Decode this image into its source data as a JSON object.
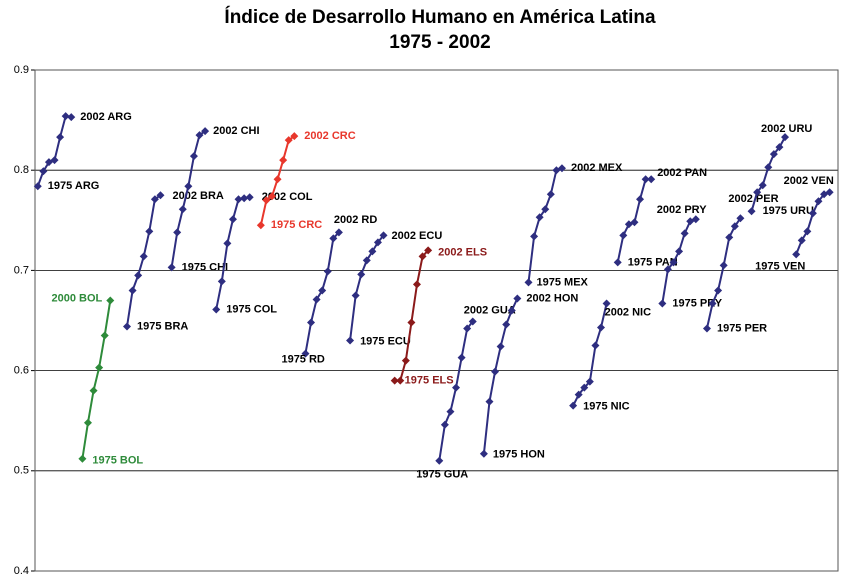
{
  "chart_data": {
    "type": "line",
    "title": "Índice de Desarrollo Humano en América Latina",
    "subtitle": "1975 - 2002",
    "xlim": [
      -0.5,
      143.5
    ],
    "ylim": [
      0.4,
      0.9
    ],
    "yticks": [
      0.4,
      0.5,
      0.6,
      0.7,
      0.8,
      0.9
    ],
    "grid": true,
    "series": [
      {
        "start_label": "1975 ARG",
        "end_label": "2002 ARG",
        "color": "#2e2e80",
        "x": [
          0,
          1,
          2,
          3,
          4,
          5,
          6
        ],
        "values": [
          0.784,
          0.799,
          0.808,
          0.81,
          0.833,
          0.854,
          0.853
        ]
      },
      {
        "start_label": "1975 BOL",
        "end_label": "2000 BOL",
        "color": "#2e8b3a",
        "x": [
          8,
          9,
          10,
          11,
          12,
          13
        ],
        "values": [
          0.512,
          0.548,
          0.58,
          0.603,
          0.635,
          0.67
        ]
      },
      {
        "start_label": "1975 BRA",
        "end_label": "2002 BRA",
        "color": "#2e2e80",
        "x": [
          16,
          17,
          18,
          19,
          20,
          21,
          22
        ],
        "values": [
          0.644,
          0.68,
          0.695,
          0.714,
          0.739,
          0.771,
          0.775
        ]
      },
      {
        "start_label": "1975 CHI",
        "end_label": "2002 CHI",
        "color": "#2e2e80",
        "x": [
          24,
          25,
          26,
          27,
          28,
          29,
          30
        ],
        "values": [
          0.703,
          0.738,
          0.761,
          0.784,
          0.814,
          0.835,
          0.839
        ]
      },
      {
        "start_label": "1975 COL",
        "end_label": "2002 COL",
        "color": "#2e2e80",
        "x": [
          32,
          33,
          34,
          35,
          36,
          37,
          38
        ],
        "values": [
          0.661,
          0.689,
          0.727,
          0.751,
          0.771,
          0.772,
          0.773
        ]
      },
      {
        "start_label": "1975 CRC",
        "end_label": "2002 CRC",
        "color": "#e8372c",
        "x": [
          40,
          41,
          42,
          43,
          44,
          45,
          46
        ],
        "values": [
          0.745,
          0.77,
          0.774,
          0.791,
          0.81,
          0.83,
          0.834
        ]
      },
      {
        "start_label": "1975 RD",
        "end_label": "2002 RD",
        "color": "#2e2e80",
        "x": [
          48,
          49,
          50,
          51,
          52,
          53,
          54
        ],
        "values": [
          0.617,
          0.648,
          0.671,
          0.68,
          0.699,
          0.732,
          0.738
        ]
      },
      {
        "start_label": "1975 ECU",
        "end_label": "2002 ECU",
        "color": "#2e2e80",
        "x": [
          56,
          57,
          58,
          59,
          60,
          61,
          62
        ],
        "values": [
          0.63,
          0.675,
          0.696,
          0.71,
          0.719,
          0.728,
          0.735
        ]
      },
      {
        "start_label": "1975 ELS",
        "end_label": "2002 ELS",
        "color": "#8b1a1a",
        "x": [
          64,
          65,
          66,
          67,
          68,
          69,
          70
        ],
        "values": [
          0.59,
          0.59,
          0.61,
          0.648,
          0.686,
          0.714,
          0.72
        ]
      },
      {
        "start_label": "1975 GUA",
        "end_label": "2002 GUA",
        "color": "#2e2e80",
        "x": [
          72,
          73,
          74,
          75,
          76,
          77,
          78
        ],
        "values": [
          0.51,
          0.546,
          0.559,
          0.583,
          0.613,
          0.642,
          0.649
        ]
      },
      {
        "start_label": "1975 HON",
        "end_label": "2002 HON",
        "color": "#2e2e80",
        "x": [
          80,
          81,
          82,
          83,
          84,
          85,
          86
        ],
        "values": [
          0.517,
          0.569,
          0.599,
          0.624,
          0.646,
          0.66,
          0.672
        ]
      },
      {
        "start_label": "1975 MEX",
        "end_label": "2002 MEX",
        "color": "#2e2e80",
        "x": [
          88,
          89,
          90,
          91,
          92,
          93,
          94
        ],
        "values": [
          0.688,
          0.734,
          0.753,
          0.761,
          0.776,
          0.8,
          0.802
        ]
      },
      {
        "start_label": "1975 NIC",
        "end_label": "2002 NIC",
        "color": "#2e2e80",
        "x": [
          96,
          97,
          98,
          99,
          100,
          101,
          102
        ],
        "values": [
          0.565,
          0.576,
          0.583,
          0.589,
          0.625,
          0.643,
          0.667
        ]
      },
      {
        "start_label": "1975 PAN",
        "end_label": "2002 PAN",
        "color": "#2e2e80",
        "x": [
          104,
          105,
          106,
          107,
          108,
          109,
          110
        ],
        "values": [
          0.708,
          0.735,
          0.746,
          0.748,
          0.771,
          0.791,
          0.791
        ]
      },
      {
        "start_label": "1975 PRY",
        "end_label": "2002 PRY",
        "color": "#2e2e80",
        "x": [
          112,
          113,
          114,
          115,
          116,
          117,
          118
        ],
        "values": [
          0.667,
          0.701,
          0.708,
          0.719,
          0.737,
          0.749,
          0.751
        ]
      },
      {
        "start_label": "1975 PER",
        "end_label": "2002 PER",
        "color": "#2e2e80",
        "x": [
          120,
          121,
          122,
          123,
          124,
          125,
          126
        ],
        "values": [
          0.642,
          0.667,
          0.68,
          0.705,
          0.733,
          0.744,
          0.752
        ]
      },
      {
        "start_label": "1975 URU",
        "end_label": "2002 URU",
        "color": "#2e2e80",
        "x": [
          128,
          129,
          130,
          131,
          132,
          133,
          134
        ],
        "values": [
          0.759,
          0.778,
          0.785,
          0.803,
          0.816,
          0.823,
          0.833
        ]
      },
      {
        "start_label": "1975 VEN",
        "end_label": "2002 VEN",
        "color": "#2e2e80",
        "x": [
          136,
          137,
          138,
          139,
          140,
          141,
          142
        ],
        "values": [
          0.716,
          0.73,
          0.739,
          0.757,
          0.769,
          0.776,
          0.778
        ]
      }
    ]
  }
}
